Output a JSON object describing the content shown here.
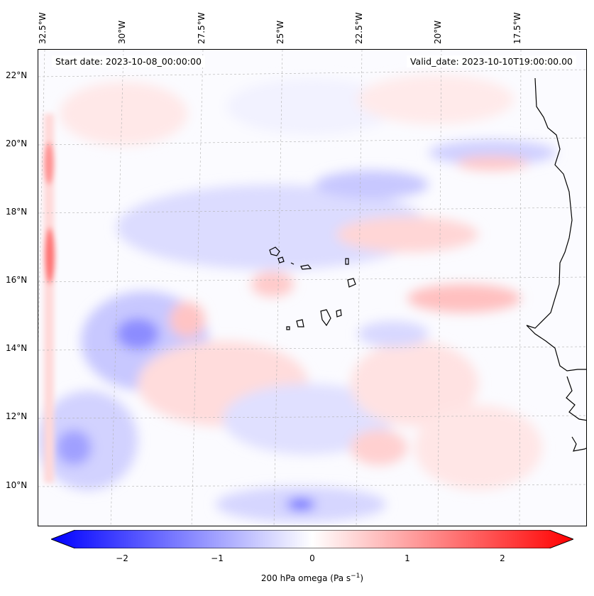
{
  "map": {
    "start_date": "Start date: 2023-10-08_00:00:00",
    "valid_date": "Valid_date: 2023-10-10T19:00:00.00",
    "lon_labels": [
      "32.5°W",
      "30°W",
      "27.5°W",
      "25°W",
      "22.5°W",
      "20°W",
      "17.5°W"
    ],
    "lat_labels": [
      "22°N",
      "20°N",
      "18°N",
      "16°N",
      "14°N",
      "12°N",
      "10°N"
    ],
    "colors": {
      "negative": "#0000ff",
      "zero": "#ffffff",
      "positive": "#ff0000",
      "coastline": "#000000",
      "gridline": "#b0b0b0"
    }
  },
  "colorbar": {
    "ticks": [
      "−2",
      "−1",
      "0",
      "1",
      "2"
    ],
    "label": "200 hPa omega (Pa s",
    "label_sup": "−1",
    "label_end": ")",
    "range": [
      -2.5,
      2.5
    ]
  }
}
